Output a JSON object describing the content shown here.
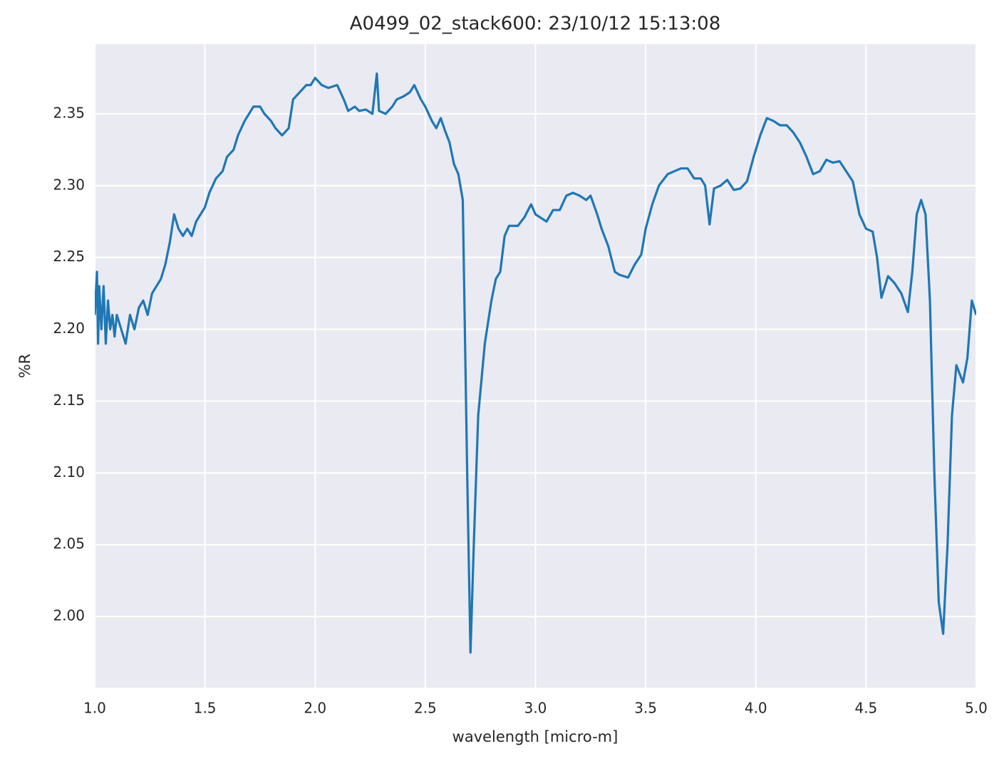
{
  "chart_data": {
    "type": "line",
    "title": "A0499_02_stack600:  23/10/12 15:13:08",
    "xlabel": "wavelength [micro-m]",
    "ylabel": "%R",
    "xlim": [
      1.0,
      5.0
    ],
    "ylim": [
      1.9505,
      2.3985
    ],
    "xticks": [
      {
        "value": 1,
        "label": "1.0"
      },
      1.5,
      {
        "value": 2,
        "label": "2.0"
      },
      2.5,
      {
        "value": 3,
        "label": "3.0"
      },
      3.5,
      {
        "value": 4,
        "label": "4.0"
      },
      4.5,
      {
        "value": 5,
        "label": "5.0"
      }
    ],
    "yticks": [
      {
        "value": 2,
        "label": "2.00"
      },
      2.05,
      {
        "value": 2.1,
        "label": "2.10"
      },
      2.15,
      {
        "value": 2.2,
        "label": "2.20"
      },
      2.25,
      {
        "value": 2.3,
        "label": "2.30"
      },
      2.35
    ],
    "grid": true,
    "series": [
      {
        "color": "#1f77b4",
        "x": [
          1.0,
          1.01,
          1.015,
          1.02,
          1.03,
          1.04,
          1.05,
          1.06,
          1.07,
          1.08,
          1.09,
          1.1,
          1.12,
          1.14,
          1.16,
          1.18,
          1.2,
          1.22,
          1.24,
          1.26,
          1.28,
          1.3,
          1.32,
          1.34,
          1.36,
          1.38,
          1.4,
          1.42,
          1.44,
          1.46,
          1.48,
          1.5,
          1.52,
          1.55,
          1.58,
          1.6,
          1.63,
          1.65,
          1.68,
          1.7,
          1.72,
          1.75,
          1.77,
          1.8,
          1.82,
          1.85,
          1.88,
          1.9,
          1.93,
          1.96,
          1.98,
          2.0,
          2.03,
          2.06,
          2.1,
          2.13,
          2.15,
          2.18,
          2.2,
          2.23,
          2.26,
          2.28,
          2.29,
          2.32,
          2.35,
          2.37,
          2.4,
          2.43,
          2.45,
          2.48,
          2.5,
          2.53,
          2.55,
          2.57,
          2.59,
          2.61,
          2.63,
          2.65,
          2.67,
          2.69,
          2.705,
          2.72,
          2.74,
          2.77,
          2.8,
          2.82,
          2.84,
          2.86,
          2.88,
          2.92,
          2.95,
          2.98,
          3.0,
          3.02,
          3.05,
          3.08,
          3.11,
          3.14,
          3.17,
          3.2,
          3.23,
          3.25,
          3.28,
          3.3,
          3.33,
          3.36,
          3.38,
          3.42,
          3.45,
          3.48,
          3.5,
          3.53,
          3.56,
          3.6,
          3.63,
          3.66,
          3.69,
          3.72,
          3.75,
          3.77,
          3.79,
          3.81,
          3.84,
          3.87,
          3.9,
          3.93,
          3.96,
          3.99,
          4.02,
          4.05,
          4.08,
          4.11,
          4.14,
          4.17,
          4.2,
          4.23,
          4.26,
          4.29,
          4.32,
          4.35,
          4.38,
          4.41,
          4.44,
          4.47,
          4.5,
          4.53,
          4.55,
          4.57,
          4.6,
          4.63,
          4.66,
          4.69,
          4.71,
          4.73,
          4.75,
          4.77,
          4.79,
          4.81,
          4.83,
          4.85,
          4.87,
          4.89,
          4.91,
          4.94,
          4.96,
          4.98,
          5.0
        ],
        "values": [
          2.21,
          2.24,
          2.19,
          2.23,
          2.2,
          2.23,
          2.19,
          2.22,
          2.2,
          2.21,
          2.195,
          2.21,
          2.2,
          2.19,
          2.21,
          2.2,
          2.215,
          2.22,
          2.21,
          2.225,
          2.23,
          2.235,
          2.245,
          2.26,
          2.28,
          2.27,
          2.265,
          2.27,
          2.265,
          2.275,
          2.28,
          2.285,
          2.295,
          2.305,
          2.31,
          2.32,
          2.325,
          2.335,
          2.345,
          2.35,
          2.355,
          2.355,
          2.35,
          2.345,
          2.34,
          2.335,
          2.34,
          2.36,
          2.365,
          2.37,
          2.37,
          2.375,
          2.37,
          2.368,
          2.37,
          2.36,
          2.352,
          2.355,
          2.352,
          2.353,
          2.35,
          2.378,
          2.352,
          2.35,
          2.355,
          2.36,
          2.362,
          2.365,
          2.37,
          2.36,
          2.355,
          2.345,
          2.34,
          2.347,
          2.338,
          2.33,
          2.315,
          2.308,
          2.29,
          2.1,
          1.975,
          2.05,
          2.14,
          2.19,
          2.22,
          2.235,
          2.24,
          2.265,
          2.272,
          2.272,
          2.278,
          2.287,
          2.28,
          2.278,
          2.275,
          2.283,
          2.283,
          2.293,
          2.295,
          2.293,
          2.29,
          2.293,
          2.28,
          2.27,
          2.258,
          2.24,
          2.238,
          2.236,
          2.245,
          2.252,
          2.27,
          2.287,
          2.3,
          2.308,
          2.31,
          2.312,
          2.312,
          2.305,
          2.305,
          2.3,
          2.273,
          2.298,
          2.3,
          2.304,
          2.297,
          2.298,
          2.303,
          2.32,
          2.335,
          2.347,
          2.345,
          2.342,
          2.342,
          2.337,
          2.33,
          2.32,
          2.308,
          2.31,
          2.318,
          2.316,
          2.317,
          2.31,
          2.303,
          2.28,
          2.27,
          2.268,
          2.25,
          2.222,
          2.237,
          2.232,
          2.225,
          2.212,
          2.24,
          2.28,
          2.29,
          2.28,
          2.22,
          2.1,
          2.01,
          1.988,
          2.05,
          2.14,
          2.175,
          2.163,
          2.18,
          2.22,
          2.21
        ]
      }
    ]
  }
}
